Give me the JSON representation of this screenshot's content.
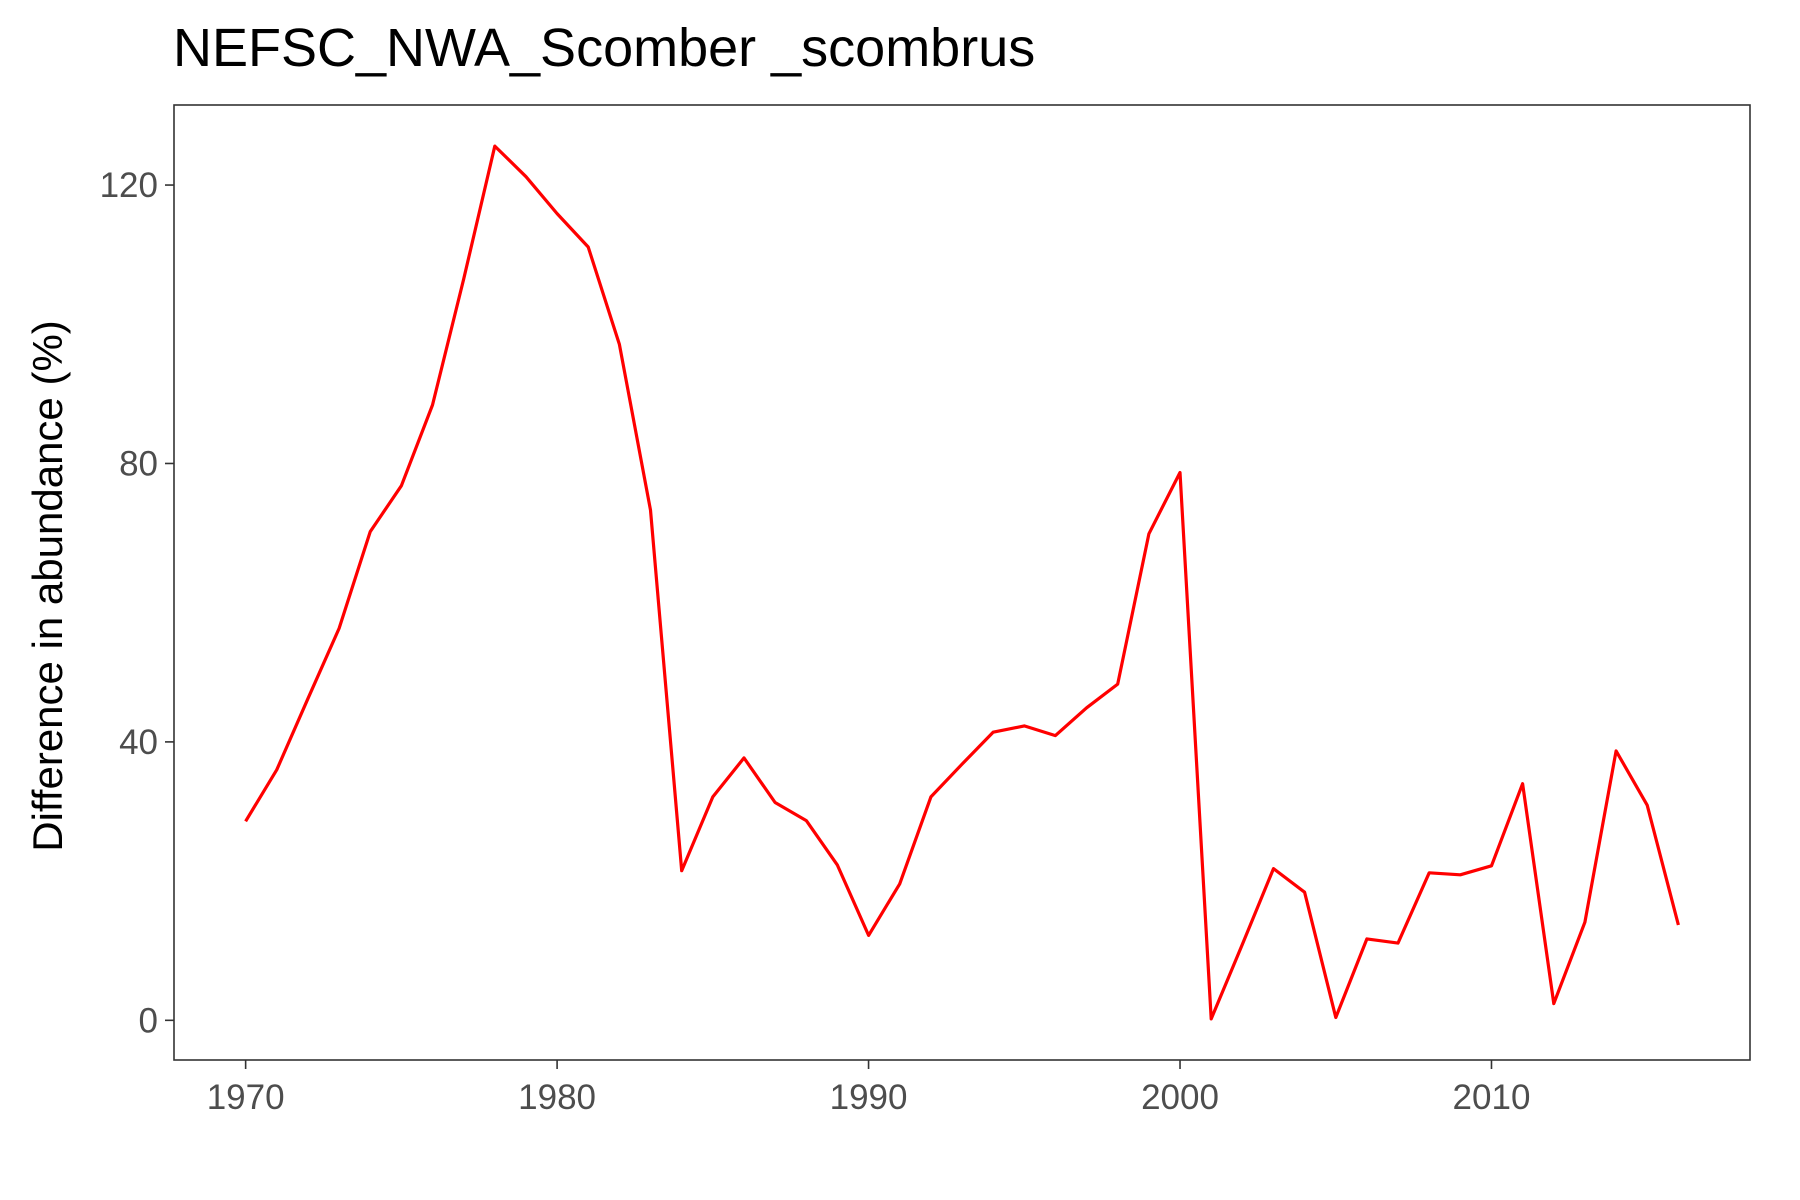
{
  "chart_data": {
    "type": "line",
    "title": "NEFSC_NWA_Scomber _scombrus",
    "xlabel": "",
    "ylabel": "Difference in abundance (%)",
    "xlim": [
      1967.7,
      2018.3
    ],
    "ylim": [
      -5.7,
      131.5
    ],
    "xticks": [
      1970,
      1980,
      1990,
      2000,
      2010
    ],
    "yticks": [
      0,
      40,
      80,
      120
    ],
    "grid": false,
    "legend": "none",
    "colors": {
      "line": "#ff0000",
      "axis": "#333333",
      "tick": "#333333",
      "tick_label": "#4d4d4d",
      "background": "#ffffff"
    },
    "series": [
      {
        "x": [
          1970,
          1971,
          1972,
          1973,
          1974,
          1975,
          1976,
          1977,
          1978,
          1979,
          1980,
          1981,
          1982,
          1983,
          1984,
          1985,
          1986,
          1987,
          1988,
          1989,
          1990,
          1991,
          1992,
          1993,
          1994,
          1995,
          1996,
          1997,
          1998,
          1999,
          2000,
          2001,
          2002,
          2003,
          2004,
          2005,
          2006,
          2007,
          2008,
          2009,
          2010,
          2011,
          2012,
          2013,
          2014,
          2015,
          2016
        ],
        "values": [
          28.6,
          36,
          46.2,
          56.3,
          70.2,
          76.8,
          88.4,
          106.5,
          125.6,
          121.2,
          115.9,
          111.1,
          97.1,
          73.3,
          21.5,
          32.1,
          37.7,
          31.3,
          28.7,
          22.3,
          12.2,
          19.6,
          32.1,
          36.8,
          41.4,
          42.3,
          40.9,
          44.9,
          48.3,
          69.9,
          78.7,
          0.2,
          10.9,
          21.8,
          18.4,
          0.4,
          11.7,
          11.1,
          21.2,
          20.9,
          22.2,
          34,
          2.4,
          14.1,
          38.7,
          30.9,
          13.7
        ]
      }
    ]
  }
}
